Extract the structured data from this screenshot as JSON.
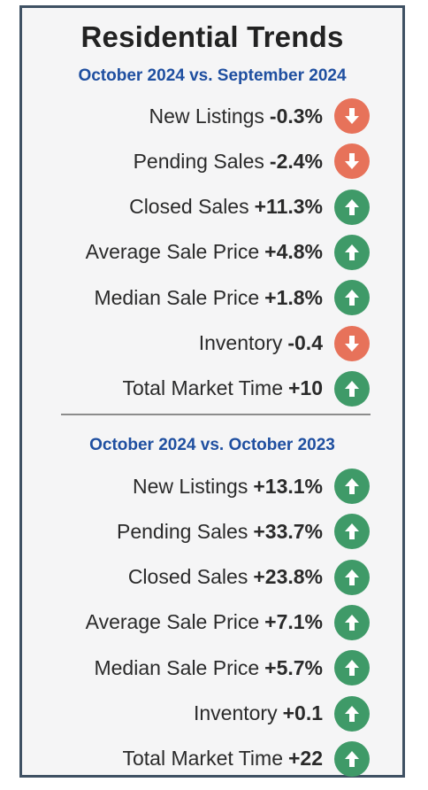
{
  "title": "Residential Trends",
  "sections": [
    {
      "subtitle": "October 2024 vs. September 2024",
      "rows": [
        {
          "label": "New Listings",
          "value": "-0.3%",
          "direction": "down"
        },
        {
          "label": "Pending Sales",
          "value": "-2.4%",
          "direction": "down"
        },
        {
          "label": "Closed Sales",
          "value": "+11.3%",
          "direction": "up"
        },
        {
          "label": "Average Sale Price",
          "value": "+4.8%",
          "direction": "up"
        },
        {
          "label": "Median Sale Price",
          "value": "+1.8%",
          "direction": "up"
        },
        {
          "label": "Inventory",
          "value": "-0.4",
          "direction": "down"
        },
        {
          "label": "Total Market Time",
          "value": "+10",
          "direction": "up"
        }
      ]
    },
    {
      "subtitle": "October 2024 vs. October 2023",
      "rows": [
        {
          "label": "New Listings",
          "value": "+13.1%",
          "direction": "up"
        },
        {
          "label": "Pending Sales",
          "value": "+33.7%",
          "direction": "up"
        },
        {
          "label": "Closed Sales",
          "value": "+23.8%",
          "direction": "up"
        },
        {
          "label": "Average Sale Price",
          "value": "+7.1%",
          "direction": "up"
        },
        {
          "label": "Median Sale Price",
          "value": "+5.7%",
          "direction": "up"
        },
        {
          "label": "Inventory",
          "value": "+0.1",
          "direction": "up"
        },
        {
          "label": "Total Market Time",
          "value": "+22",
          "direction": "up"
        }
      ]
    }
  ],
  "colors": {
    "up": "#3f9a68",
    "down": "#e7725a",
    "subtitle": "#1f4fa0",
    "border": "#3f5163"
  },
  "icons": {
    "up": "arrow-up-icon",
    "down": "arrow-down-icon"
  }
}
